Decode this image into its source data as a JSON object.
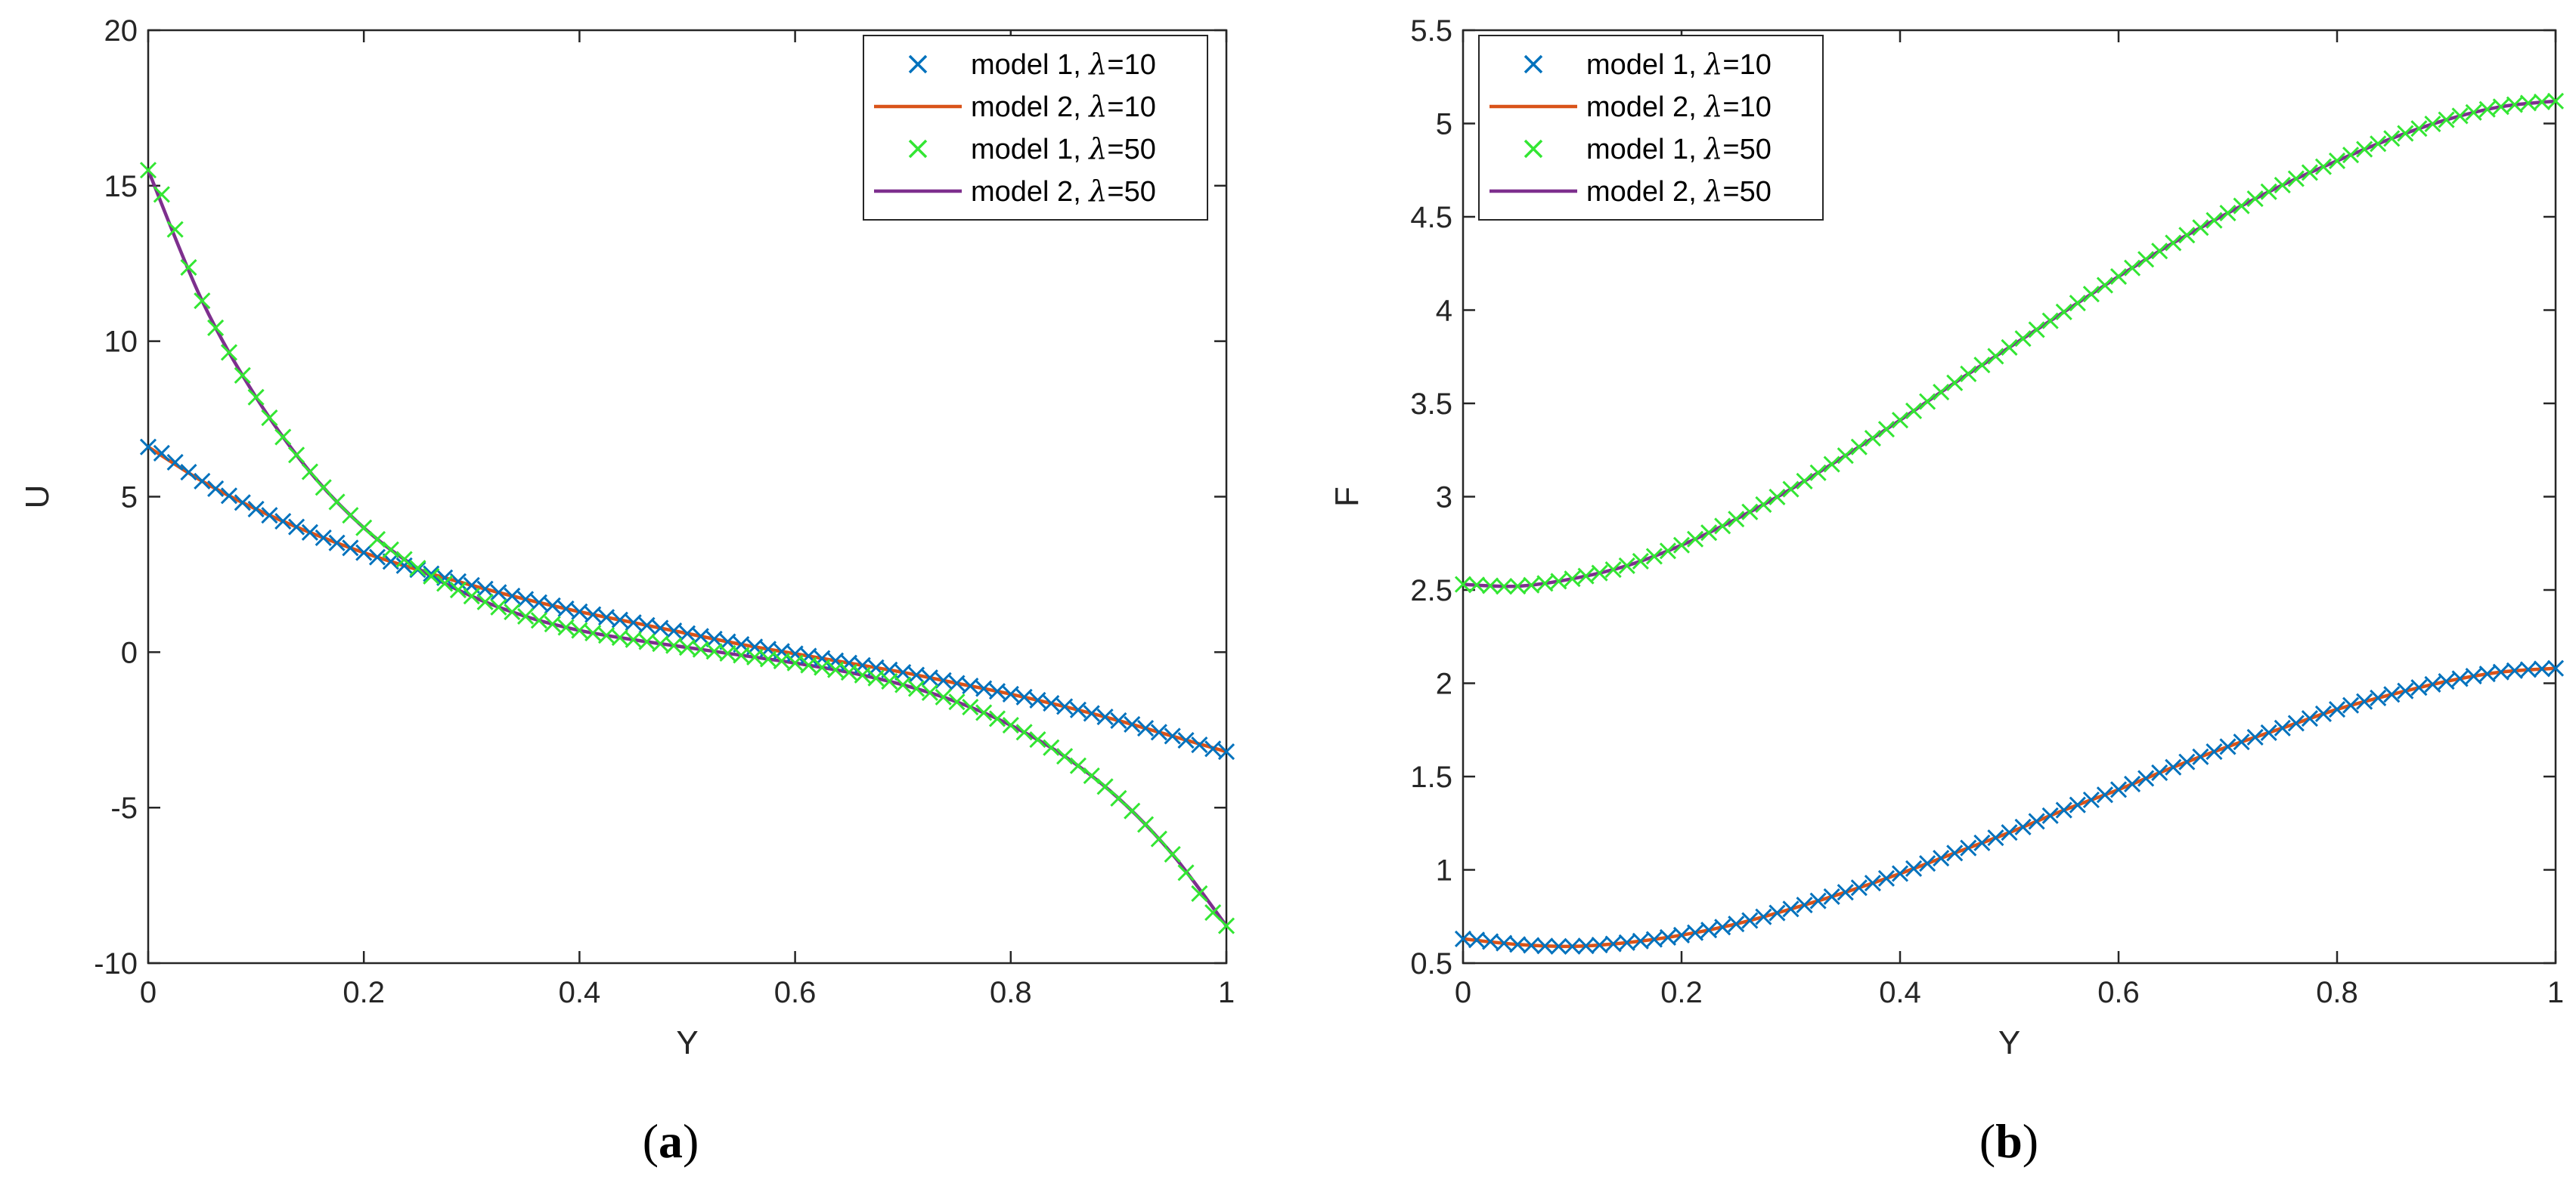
{
  "chart_data": [
    {
      "type": "line",
      "caption_open": "(",
      "caption_letter": "a",
      "caption_close": ")",
      "xlabel": "Y",
      "ylabel": "U",
      "xlim": [
        0,
        1
      ],
      "ylim": [
        -10,
        20
      ],
      "xticks": [
        0,
        0.2,
        0.4,
        0.6,
        0.8,
        1
      ],
      "xtick_labels": [
        "0",
        "0.2",
        "0.4",
        "0.6",
        "0.8",
        "1"
      ],
      "yticks": [
        -10,
        -5,
        0,
        5,
        10,
        15,
        20
      ],
      "ytick_labels": [
        "-10",
        "-5",
        "0",
        "5",
        "10",
        "15",
        "20"
      ],
      "legend_position": "top-right",
      "x": [
        0,
        0.05,
        0.1,
        0.15,
        0.2,
        0.25,
        0.3,
        0.35,
        0.4,
        0.45,
        0.5,
        0.55,
        0.6,
        0.65,
        0.7,
        0.75,
        0.8,
        0.85,
        0.9,
        0.95,
        1.0
      ],
      "series": [
        {
          "label_prefix": "model 1, ",
          "lambda_symbol": "λ",
          "label_suffix": "=10",
          "style": "markers",
          "color": "#0072BD",
          "values": [
            6.6,
            5.5,
            4.6,
            3.85,
            3.2,
            2.65,
            2.15,
            1.7,
            1.3,
            0.95,
            0.6,
            0.25,
            -0.05,
            -0.35,
            -0.65,
            -1.0,
            -1.35,
            -1.75,
            -2.2,
            -2.7,
            -3.2
          ]
        },
        {
          "label_prefix": "model 2, ",
          "lambda_symbol": "λ",
          "label_suffix": "=10",
          "style": "line",
          "color": "#D95319",
          "values": [
            6.6,
            5.5,
            4.6,
            3.85,
            3.2,
            2.65,
            2.15,
            1.7,
            1.3,
            0.95,
            0.6,
            0.25,
            -0.05,
            -0.35,
            -0.65,
            -1.0,
            -1.35,
            -1.75,
            -2.2,
            -2.7,
            -3.2
          ]
        },
        {
          "label_prefix": "model 1, ",
          "lambda_symbol": "λ",
          "label_suffix": "=50",
          "style": "markers",
          "color": "#33E633",
          "values": [
            15.5,
            11.3,
            8.2,
            5.8,
            4.0,
            2.7,
            1.8,
            1.15,
            0.7,
            0.4,
            0.15,
            -0.1,
            -0.35,
            -0.65,
            -1.05,
            -1.6,
            -2.35,
            -3.35,
            -4.7,
            -6.5,
            -8.8
          ]
        },
        {
          "label_prefix": "model 2, ",
          "lambda_symbol": "λ",
          "label_suffix": "=50",
          "style": "line",
          "color": "#7E2F8E",
          "values": [
            15.5,
            11.3,
            8.2,
            5.8,
            4.0,
            2.7,
            1.8,
            1.15,
            0.7,
            0.4,
            0.15,
            -0.1,
            -0.35,
            -0.65,
            -1.05,
            -1.6,
            -2.35,
            -3.35,
            -4.7,
            -6.5,
            -8.8
          ]
        }
      ]
    },
    {
      "type": "line",
      "caption_open": "(",
      "caption_letter": "b",
      "caption_close": ")",
      "xlabel": "Y",
      "ylabel": "F",
      "xlim": [
        0,
        1
      ],
      "ylim": [
        0.5,
        5.5
      ],
      "xticks": [
        0,
        0.2,
        0.4,
        0.6,
        0.8,
        1
      ],
      "xtick_labels": [
        "0",
        "0.2",
        "0.4",
        "0.6",
        "0.8",
        "1"
      ],
      "yticks": [
        0.5,
        1,
        1.5,
        2,
        2.5,
        3,
        3.5,
        4,
        4.5,
        5,
        5.5
      ],
      "ytick_labels": [
        "0.5",
        "1",
        "1.5",
        "2",
        "2.5",
        "3",
        "3.5",
        "4",
        "4.5",
        "5",
        "5.5"
      ],
      "legend_position": "top-left",
      "x": [
        0,
        0.05,
        0.1,
        0.15,
        0.2,
        0.25,
        0.3,
        0.35,
        0.4,
        0.45,
        0.5,
        0.55,
        0.6,
        0.65,
        0.7,
        0.75,
        0.8,
        0.85,
        0.9,
        0.95,
        1.0
      ],
      "series": [
        {
          "label_prefix": "model 1, ",
          "lambda_symbol": "λ",
          "label_suffix": "=10",
          "style": "markers",
          "color": "#0072BD",
          "values": [
            0.63,
            0.6,
            0.59,
            0.61,
            0.65,
            0.71,
            0.79,
            0.88,
            0.98,
            1.09,
            1.2,
            1.32,
            1.43,
            1.55,
            1.66,
            1.76,
            1.86,
            1.94,
            2.01,
            2.06,
            2.08
          ]
        },
        {
          "label_prefix": "model 2, ",
          "lambda_symbol": "λ",
          "label_suffix": "=10",
          "style": "line",
          "color": "#D95319",
          "values": [
            0.63,
            0.6,
            0.59,
            0.61,
            0.65,
            0.71,
            0.79,
            0.88,
            0.98,
            1.09,
            1.2,
            1.32,
            1.43,
            1.55,
            1.66,
            1.76,
            1.86,
            1.94,
            2.01,
            2.06,
            2.08
          ]
        },
        {
          "label_prefix": "model 1, ",
          "lambda_symbol": "λ",
          "label_suffix": "=50",
          "style": "markers",
          "color": "#33E633",
          "values": [
            2.53,
            2.52,
            2.56,
            2.63,
            2.74,
            2.88,
            3.04,
            3.22,
            3.41,
            3.61,
            3.8,
            3.99,
            4.18,
            4.36,
            4.52,
            4.67,
            4.8,
            4.92,
            5.02,
            5.09,
            5.12
          ]
        },
        {
          "label_prefix": "model 2, ",
          "lambda_symbol": "λ",
          "label_suffix": "=50",
          "style": "line",
          "color": "#7E2F8E",
          "values": [
            2.53,
            2.52,
            2.56,
            2.63,
            2.74,
            2.88,
            3.04,
            3.22,
            3.41,
            3.61,
            3.8,
            3.99,
            4.18,
            4.36,
            4.52,
            4.67,
            4.8,
            4.92,
            5.02,
            5.09,
            5.12
          ]
        }
      ]
    }
  ]
}
